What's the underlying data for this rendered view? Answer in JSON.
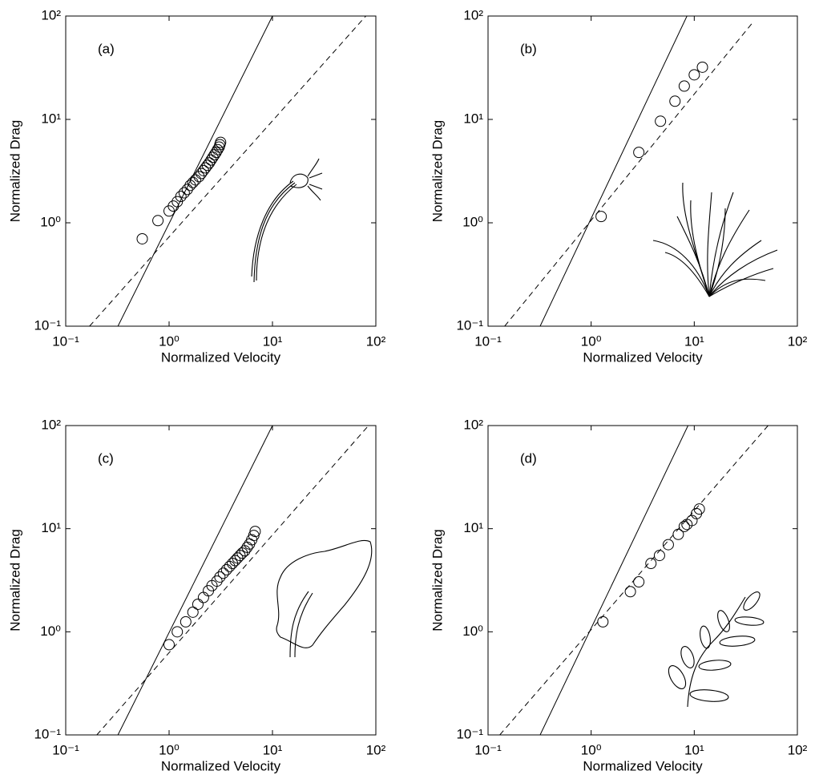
{
  "chart_data": [
    {
      "type": "scatter",
      "annotation": "(a)",
      "xlabel": "Normalized  Velocity",
      "ylabel": "Normalized Drag",
      "log_x": true,
      "log_y": true,
      "xlim": [
        0.1,
        100
      ],
      "ylim": [
        0.1,
        100
      ],
      "xticks": [
        {
          "value": 0.1,
          "label": "10⁻¹"
        },
        {
          "value": 1,
          "label": "10⁰"
        },
        {
          "value": 10,
          "label": "10¹"
        },
        {
          "value": 100,
          "label": "10²"
        }
      ],
      "yticks": [
        {
          "value": 0.1,
          "label": "10⁻¹"
        },
        {
          "value": 1,
          "label": "10⁰"
        },
        {
          "value": 10,
          "label": "10¹"
        },
        {
          "value": 100,
          "label": "10²"
        }
      ],
      "series": [
        {
          "style": "markers",
          "color": "#000000",
          "x": [
            0.55,
            0.78,
            1.0,
            1.1,
            1.2,
            1.3,
            1.4,
            1.5,
            1.6,
            1.7,
            1.8,
            1.95,
            2.05,
            2.15,
            2.25,
            2.35,
            2.45,
            2.55,
            2.65,
            2.75,
            2.85,
            2.95,
            3.05,
            3.1,
            3.15
          ],
          "values": [
            0.7,
            1.05,
            1.3,
            1.45,
            1.6,
            1.8,
            1.95,
            2.1,
            2.3,
            2.45,
            2.6,
            2.8,
            3.0,
            3.2,
            3.4,
            3.6,
            3.8,
            4.05,
            4.3,
            4.55,
            4.8,
            5.1,
            5.4,
            5.7,
            6.0
          ]
        },
        {
          "style": "solid",
          "color": "#000000",
          "x": [
            0.32,
            10
          ],
          "values": [
            0.1,
            100
          ]
        },
        {
          "style": "dashed",
          "color": "#000000",
          "x": [
            0.17,
            80
          ],
          "values": [
            0.1,
            100
          ]
        }
      ]
    },
    {
      "type": "scatter",
      "annotation": "(b)",
      "xlabel": "Normalized  Velocity",
      "ylabel": "Normalized Drag",
      "log_x": true,
      "log_y": true,
      "xlim": [
        0.1,
        100
      ],
      "ylim": [
        0.1,
        100
      ],
      "xticks": [
        {
          "value": 0.1,
          "label": "10⁻¹"
        },
        {
          "value": 1,
          "label": "10⁰"
        },
        {
          "value": 10,
          "label": "10¹"
        },
        {
          "value": 100,
          "label": "10²"
        }
      ],
      "yticks": [
        {
          "value": 0.1,
          "label": "10⁻¹"
        },
        {
          "value": 1,
          "label": "10⁰"
        },
        {
          "value": 10,
          "label": "10¹"
        },
        {
          "value": 100,
          "label": "10²"
        }
      ],
      "series": [
        {
          "style": "markers",
          "color": "#000000",
          "x": [
            1.25,
            2.9,
            4.7,
            6.5,
            8.0,
            10,
            12
          ],
          "values": [
            1.15,
            4.8,
            9.6,
            15,
            21,
            27,
            32
          ]
        },
        {
          "style": "solid",
          "color": "#000000",
          "x": [
            0.32,
            8.5
          ],
          "values": [
            0.1,
            100
          ]
        },
        {
          "style": "dashed",
          "color": "#000000",
          "x": [
            0.145,
            36
          ],
          "values": [
            0.1,
            84
          ]
        }
      ]
    },
    {
      "type": "scatter",
      "annotation": "(c)",
      "xlabel": "Normalized  Velocity",
      "ylabel": "Normalized Drag",
      "log_x": true,
      "log_y": true,
      "xlim": [
        0.1,
        100
      ],
      "ylim": [
        0.1,
        100
      ],
      "xticks": [
        {
          "value": 0.1,
          "label": "10⁻¹"
        },
        {
          "value": 1,
          "label": "10⁰"
        },
        {
          "value": 10,
          "label": "10¹"
        },
        {
          "value": 100,
          "label": "10²"
        }
      ],
      "yticks": [
        {
          "value": 0.1,
          "label": "10⁻¹"
        },
        {
          "value": 1,
          "label": "10⁰"
        },
        {
          "value": 10,
          "label": "10¹"
        },
        {
          "value": 100,
          "label": "10²"
        }
      ],
      "series": [
        {
          "style": "markers",
          "color": "#000000",
          "x": [
            1.0,
            1.2,
            1.45,
            1.7,
            1.9,
            2.15,
            2.4,
            2.6,
            2.9,
            3.1,
            3.35,
            3.6,
            3.85,
            4.1,
            4.35,
            4.6,
            4.85,
            5.1,
            5.4,
            5.7,
            6.0,
            6.3,
            6.6,
            6.8
          ],
          "values": [
            0.75,
            1.0,
            1.25,
            1.55,
            1.85,
            2.15,
            2.5,
            2.8,
            3.1,
            3.4,
            3.7,
            4.0,
            4.3,
            4.6,
            4.9,
            5.2,
            5.5,
            5.8,
            6.1,
            6.6,
            7.1,
            7.8,
            8.6,
            9.4
          ]
        },
        {
          "style": "solid",
          "color": "#000000",
          "x": [
            0.32,
            10
          ],
          "values": [
            0.1,
            100
          ]
        },
        {
          "style": "dashed",
          "color": "#000000",
          "x": [
            0.2,
            85
          ],
          "values": [
            0.1,
            100
          ]
        }
      ]
    },
    {
      "type": "scatter",
      "annotation": "(d)",
      "xlabel": "Normalized  Velocity",
      "ylabel": "Normalized Drag",
      "log_x": true,
      "log_y": true,
      "xlim": [
        0.1,
        100
      ],
      "ylim": [
        0.1,
        100
      ],
      "xticks": [
        {
          "value": 0.1,
          "label": "10⁻¹"
        },
        {
          "value": 1,
          "label": "10⁰"
        },
        {
          "value": 10,
          "label": "10¹"
        },
        {
          "value": 100,
          "label": "10²"
        }
      ],
      "yticks": [
        {
          "value": 0.1,
          "label": "10⁻¹"
        },
        {
          "value": 1,
          "label": "10⁰"
        },
        {
          "value": 10,
          "label": "10¹"
        },
        {
          "value": 100,
          "label": "10²"
        }
      ],
      "series": [
        {
          "style": "markers",
          "color": "#000000",
          "x": [
            1.3,
            2.4,
            2.9,
            3.8,
            4.6,
            5.6,
            7.0,
            8.0,
            8.5,
            9.5,
            10.5,
            11.2
          ],
          "values": [
            1.25,
            2.45,
            3.05,
            4.6,
            5.5,
            7.0,
            8.8,
            10.5,
            11,
            12,
            14,
            15.5
          ]
        },
        {
          "style": "solid",
          "color": "#000000",
          "x": [
            0.32,
            8.7
          ],
          "values": [
            0.1,
            100
          ]
        },
        {
          "style": "dashed",
          "color": "#000000",
          "x": [
            0.13,
            52
          ],
          "values": [
            0.1,
            100
          ]
        }
      ]
    }
  ]
}
